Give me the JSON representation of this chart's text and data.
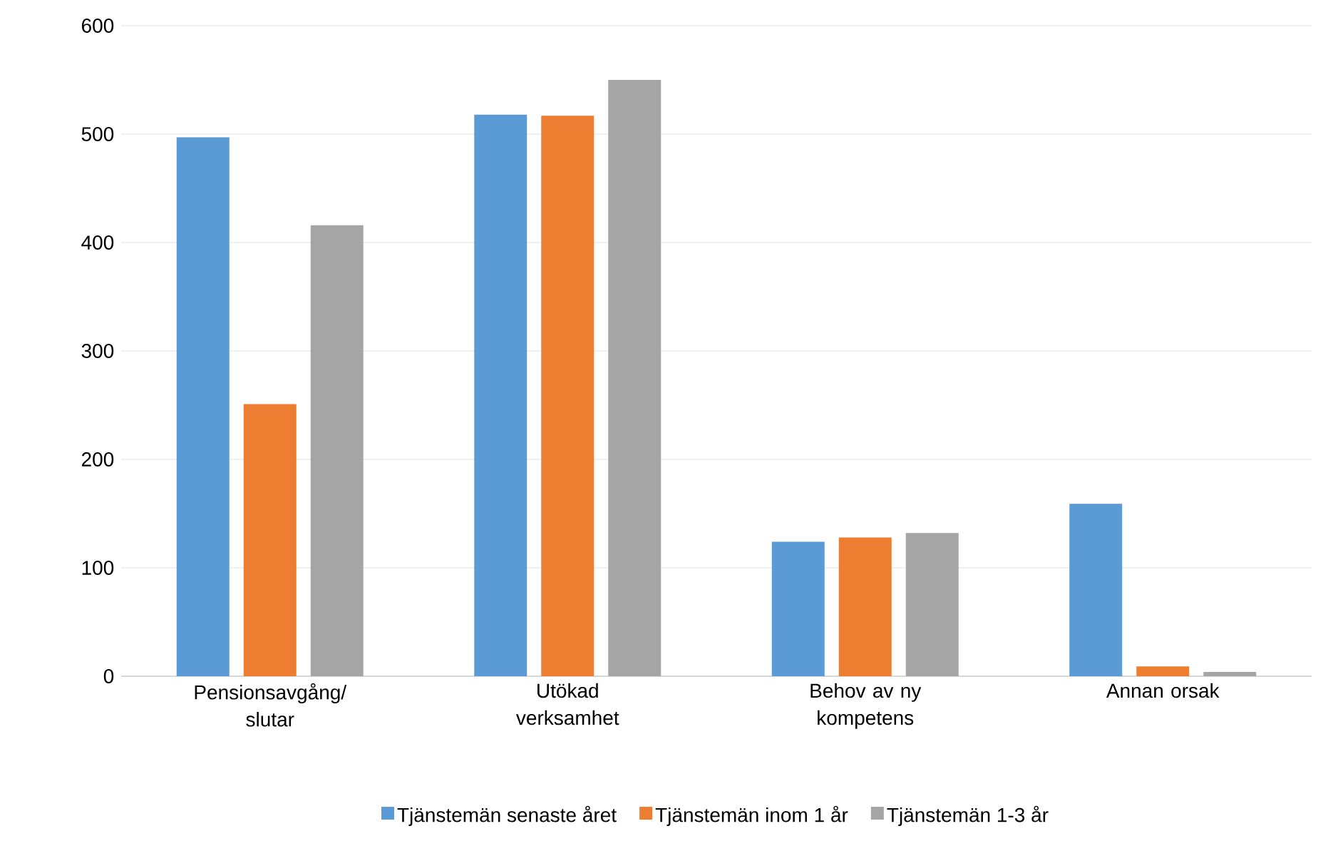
{
  "chart_data": {
    "type": "bar",
    "categories": [
      "Pensionsavgång/ slutar",
      "Utökad verksamhet",
      "Behov av ny kompetens",
      "Annan orsak"
    ],
    "series": [
      {
        "name": "Tjänstemän senaste året",
        "color": "#5b9bd5",
        "values": [
          497,
          518,
          124,
          159
        ]
      },
      {
        "name": "Tjänstemän inom 1 år",
        "color": "#ed7d31",
        "values": [
          251,
          517,
          128,
          9
        ]
      },
      {
        "name": "Tjänstemän 1-3 år",
        "color": "#a5a5a5",
        "values": [
          416,
          550,
          132,
          4
        ]
      }
    ],
    "ylim": [
      0,
      600
    ],
    "yticks": [
      0,
      100,
      200,
      300,
      400,
      500,
      600
    ],
    "grid": "y",
    "legend": "bottom"
  }
}
